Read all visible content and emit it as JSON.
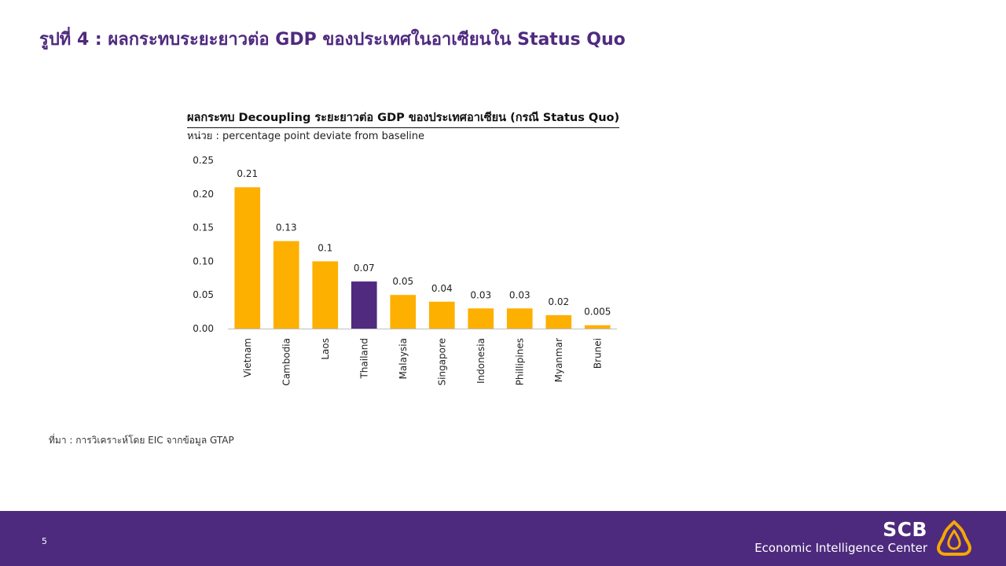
{
  "slide": {
    "title": "รูปที่ 4 : ผลกระทบระยะยาวต่อ GDP ของประเทศในอาเซียนใน Status Quo",
    "source": "ที่มา : การวิเคราะห์โดย EIC จากข้อมูล GTAP",
    "page_number": "5"
  },
  "footer": {
    "brand_name": "SCB",
    "brand_tagline": "Economic Intelligence Center",
    "logo_icon": "scb-shell-logo-icon",
    "background_color": "#4d2a7d",
    "logo_color": "#f5a800"
  },
  "chart_data": {
    "type": "bar",
    "title": "ผลกระทบ Decoupling ระยะยาวต่อ GDP ของประเทศอาเซียน (กรณี Status Quo)",
    "subtitle": "หน่วย : percentage point deviate from baseline",
    "categories": [
      "Vietnam",
      "Cambodia",
      "Laos",
      "Thailand",
      "Malaysia",
      "Singapore",
      "Indonesia",
      "Phillipines",
      "Myanmar",
      "Brunei"
    ],
    "values": [
      0.21,
      0.13,
      0.1,
      0.07,
      0.05,
      0.04,
      0.03,
      0.03,
      0.02,
      0.005
    ],
    "data_labels": [
      "0.21",
      "0.13",
      "0.1",
      "0.07",
      "0.05",
      "0.04",
      "0.03",
      "0.03",
      "0.02",
      "0.005"
    ],
    "highlight_category": "Thailand",
    "colors": {
      "default": "#fdb000",
      "highlight": "#4f2a7f"
    },
    "ylim": [
      0,
      0.25
    ],
    "yticks": [
      0,
      0.05,
      0.1,
      0.15,
      0.2,
      0.25
    ],
    "ytick_labels": [
      "0.00",
      "0.05",
      "0.10",
      "0.15",
      "0.20",
      "0.25"
    ],
    "xlabel": "",
    "ylabel": "",
    "grid": false,
    "legend": "none"
  }
}
